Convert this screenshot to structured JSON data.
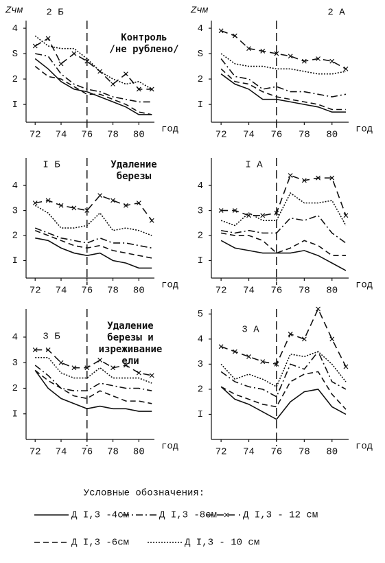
{
  "chart_data": [
    {
      "type": "line",
      "title": "2 Б",
      "ylabel": "Zчм",
      "annotation": [
        "Контроль",
        "/не рублено/"
      ],
      "xlabel": "год",
      "color": "#111",
      "x": [
        72,
        73,
        74,
        75,
        76,
        77,
        78,
        79,
        80,
        81
      ],
      "xlim": [
        71.3,
        81.2
      ],
      "xticks": [
        72,
        74,
        76,
        78,
        80
      ],
      "ylim": [
        0.3,
        4.3
      ],
      "yticks": [
        {
          "value": 1,
          "label": "I"
        },
        2,
        {
          "value": 3,
          "label": "S"
        },
        4
      ],
      "vline": 76,
      "series": [
        {
          "style": "solid",
          "values": [
            2.8,
            2.4,
            1.9,
            1.6,
            1.5,
            1.3,
            1.1,
            0.9,
            0.6,
            0.6
          ]
        },
        {
          "style": "dashdot",
          "values": [
            3.0,
            2.9,
            2.2,
            1.8,
            1.6,
            1.5,
            1.3,
            1.2,
            1.1,
            1.1
          ]
        },
        {
          "style": "cross",
          "values": [
            3.3,
            3.6,
            2.6,
            3.0,
            2.7,
            2.3,
            1.8,
            2.2,
            1.6,
            1.6
          ]
        },
        {
          "style": "dashed",
          "values": [
            2.5,
            2.1,
            2.0,
            1.7,
            1.4,
            1.4,
            1.2,
            1.0,
            0.7,
            0.6
          ]
        },
        {
          "style": "dotted",
          "values": [
            3.7,
            3.3,
            3.2,
            3.2,
            2.8,
            2.3,
            2.0,
            1.8,
            1.9,
            1.6
          ]
        }
      ]
    },
    {
      "type": "line",
      "title": "2 А",
      "ylabel": "Zчм",
      "xlabel": "год",
      "color": "#111",
      "x": [
        72,
        73,
        74,
        75,
        76,
        77,
        78,
        79,
        80,
        81
      ],
      "xlim": [
        71.3,
        81.2
      ],
      "xticks": [
        72,
        74,
        76,
        78,
        80
      ],
      "ylim": [
        0.3,
        4.3
      ],
      "yticks": [
        {
          "value": 1,
          "label": "I"
        },
        2,
        {
          "value": 3,
          "label": "S"
        },
        4
      ],
      "vline": 76,
      "series": [
        {
          "style": "solid",
          "values": [
            2.2,
            1.8,
            1.6,
            1.2,
            1.2,
            1.1,
            1.0,
            0.9,
            0.7,
            0.7
          ]
        },
        {
          "style": "dashdot",
          "values": [
            2.8,
            2.1,
            2.0,
            1.6,
            1.7,
            1.5,
            1.5,
            1.4,
            1.3,
            1.4
          ]
        },
        {
          "style": "cross",
          "values": [
            3.9,
            3.7,
            3.2,
            3.1,
            3.0,
            2.9,
            2.7,
            2.8,
            2.7,
            2.4
          ]
        },
        {
          "style": "dashed",
          "values": [
            2.4,
            1.9,
            1.8,
            1.5,
            1.3,
            1.2,
            1.1,
            1.0,
            0.8,
            0.8
          ]
        },
        {
          "style": "dotted",
          "values": [
            3.0,
            2.6,
            2.5,
            2.5,
            2.4,
            2.4,
            2.3,
            2.2,
            2.2,
            2.3
          ]
        }
      ]
    },
    {
      "type": "line",
      "title": "I Б",
      "annotation": [
        "Удаление",
        "березы"
      ],
      "xlabel": "год",
      "color": "#111",
      "x": [
        72,
        73,
        74,
        75,
        76,
        77,
        78,
        79,
        80,
        81
      ],
      "xlim": [
        71.3,
        81.2
      ],
      "xticks": [
        72,
        74,
        76,
        78,
        80
      ],
      "ylim": [
        0.3,
        5.1
      ],
      "yticks": [
        {
          "value": 1,
          "label": "I"
        },
        2,
        3,
        4
      ],
      "vline": 76,
      "series": [
        {
          "style": "solid",
          "values": [
            1.9,
            1.8,
            1.5,
            1.3,
            1.2,
            1.3,
            1.0,
            0.9,
            0.7,
            0.7
          ]
        },
        {
          "style": "dashdot",
          "values": [
            2.3,
            2.1,
            1.9,
            1.8,
            1.7,
            1.9,
            1.7,
            1.7,
            1.6,
            1.5
          ]
        },
        {
          "style": "cross",
          "values": [
            3.3,
            3.4,
            3.2,
            3.1,
            3.0,
            3.6,
            3.4,
            3.2,
            3.3,
            2.6
          ]
        },
        {
          "style": "dashed",
          "values": [
            2.2,
            2.0,
            1.8,
            1.6,
            1.5,
            1.6,
            1.4,
            1.3,
            1.2,
            1.1
          ]
        },
        {
          "style": "dotted",
          "values": [
            3.2,
            2.9,
            2.3,
            2.3,
            2.4,
            2.9,
            2.2,
            2.3,
            2.2,
            2.0
          ]
        }
      ]
    },
    {
      "type": "line",
      "title": "I А",
      "xlabel": "год",
      "color": "#111",
      "x": [
        72,
        73,
        74,
        75,
        76,
        77,
        78,
        79,
        80,
        81
      ],
      "xlim": [
        71.3,
        81.2
      ],
      "xticks": [
        72,
        74,
        76,
        78,
        80
      ],
      "ylim": [
        0.3,
        5.1
      ],
      "yticks": [
        {
          "value": 1,
          "label": "I"
        },
        2,
        3,
        4
      ],
      "vline": 76,
      "series": [
        {
          "style": "solid",
          "values": [
            1.8,
            1.5,
            1.4,
            1.3,
            1.3,
            1.3,
            1.4,
            1.2,
            0.9,
            0.6
          ]
        },
        {
          "style": "dashdot",
          "values": [
            2.2,
            2.1,
            2.2,
            2.1,
            2.1,
            2.7,
            2.6,
            2.8,
            2.1,
            1.7
          ]
        },
        {
          "style": "cross",
          "values": [
            3.0,
            3.0,
            2.8,
            2.8,
            2.9,
            4.4,
            4.2,
            4.3,
            4.3,
            2.8
          ]
        },
        {
          "style": "dashed",
          "values": [
            2.1,
            2.0,
            2.0,
            1.8,
            1.3,
            1.5,
            1.8,
            1.6,
            1.2,
            1.2
          ]
        },
        {
          "style": "dotted",
          "values": [
            2.6,
            2.4,
            2.9,
            2.6,
            2.6,
            3.7,
            3.3,
            3.3,
            3.4,
            2.4
          ]
        }
      ]
    },
    {
      "type": "line",
      "title": "3 Б",
      "annotation": [
        "Удаление",
        "березы и",
        "изреживание",
        "ели"
      ],
      "xlabel": "год",
      "color": "#111",
      "x": [
        72,
        73,
        74,
        75,
        76,
        77,
        78,
        79,
        80,
        81
      ],
      "xlim": [
        71.3,
        81.2
      ],
      "xticks": [
        72,
        74,
        76,
        78,
        80
      ],
      "ylim": [
        0.0,
        5.1
      ],
      "yticks": [
        {
          "value": 1,
          "label": "I"
        },
        2,
        3,
        4
      ],
      "vline": 76,
      "series": [
        {
          "style": "solid",
          "values": [
            2.7,
            2.0,
            1.6,
            1.4,
            1.2,
            1.3,
            1.2,
            1.2,
            1.1,
            1.1
          ]
        },
        {
          "style": "dashdot",
          "values": [
            2.9,
            2.5,
            2.0,
            1.9,
            1.9,
            2.2,
            2.1,
            2.0,
            2.0,
            1.9
          ]
        },
        {
          "style": "cross",
          "values": [
            3.5,
            3.5,
            3.0,
            2.8,
            2.8,
            3.1,
            2.8,
            2.9,
            2.6,
            2.5
          ]
        },
        {
          "style": "dashed",
          "values": [
            2.7,
            2.3,
            2.0,
            1.7,
            1.6,
            1.9,
            1.7,
            1.5,
            1.5,
            1.4
          ]
        },
        {
          "style": "dotted",
          "values": [
            3.2,
            3.2,
            2.6,
            2.4,
            2.4,
            2.8,
            2.4,
            2.4,
            2.4,
            2.2
          ]
        }
      ]
    },
    {
      "type": "line",
      "title": "3 А",
      "xlabel": "год",
      "color": "#111",
      "x": [
        72,
        73,
        74,
        75,
        76,
        77,
        78,
        79,
        80,
        81
      ],
      "xlim": [
        71.3,
        81.2
      ],
      "xticks": [
        72,
        74,
        76,
        78,
        80
      ],
      "ylim": [
        0.0,
        5.2
      ],
      "yticks": [
        {
          "value": 1,
          "label": "I"
        },
        2,
        3,
        4,
        5
      ],
      "vline": 76,
      "series": [
        {
          "style": "solid",
          "values": [
            2.1,
            1.6,
            1.4,
            1.1,
            0.8,
            1.5,
            1.9,
            2.0,
            1.3,
            1.0
          ]
        },
        {
          "style": "dashdot",
          "values": [
            2.7,
            2.3,
            2.1,
            2.0,
            1.7,
            3.0,
            2.8,
            3.5,
            2.3,
            2.0
          ]
        },
        {
          "style": "cross",
          "values": [
            3.7,
            3.5,
            3.3,
            3.1,
            3.0,
            4.2,
            4.0,
            5.2,
            4.0,
            2.9
          ]
        },
        {
          "style": "dashed",
          "values": [
            2.1,
            1.8,
            1.6,
            1.4,
            1.3,
            2.3,
            2.6,
            2.7,
            1.8,
            1.2
          ]
        },
        {
          "style": "dotted",
          "values": [
            3.0,
            2.4,
            2.6,
            2.4,
            2.1,
            3.4,
            3.3,
            3.5,
            3.0,
            2.3
          ]
        }
      ]
    }
  ],
  "legend": {
    "title": "Условные обозначения:",
    "items": [
      {
        "name": "Д I,3 -4см",
        "style": "solid"
      },
      {
        "name": "Д I,3 -8см",
        "style": "dashdot"
      },
      {
        "name": "Д I,3 - 12 см",
        "style": "cross"
      },
      {
        "name": "Д I,3 -6см",
        "style": "dashed"
      },
      {
        "name": "Д I,3 - 10 см",
        "style": "dotted"
      }
    ]
  }
}
